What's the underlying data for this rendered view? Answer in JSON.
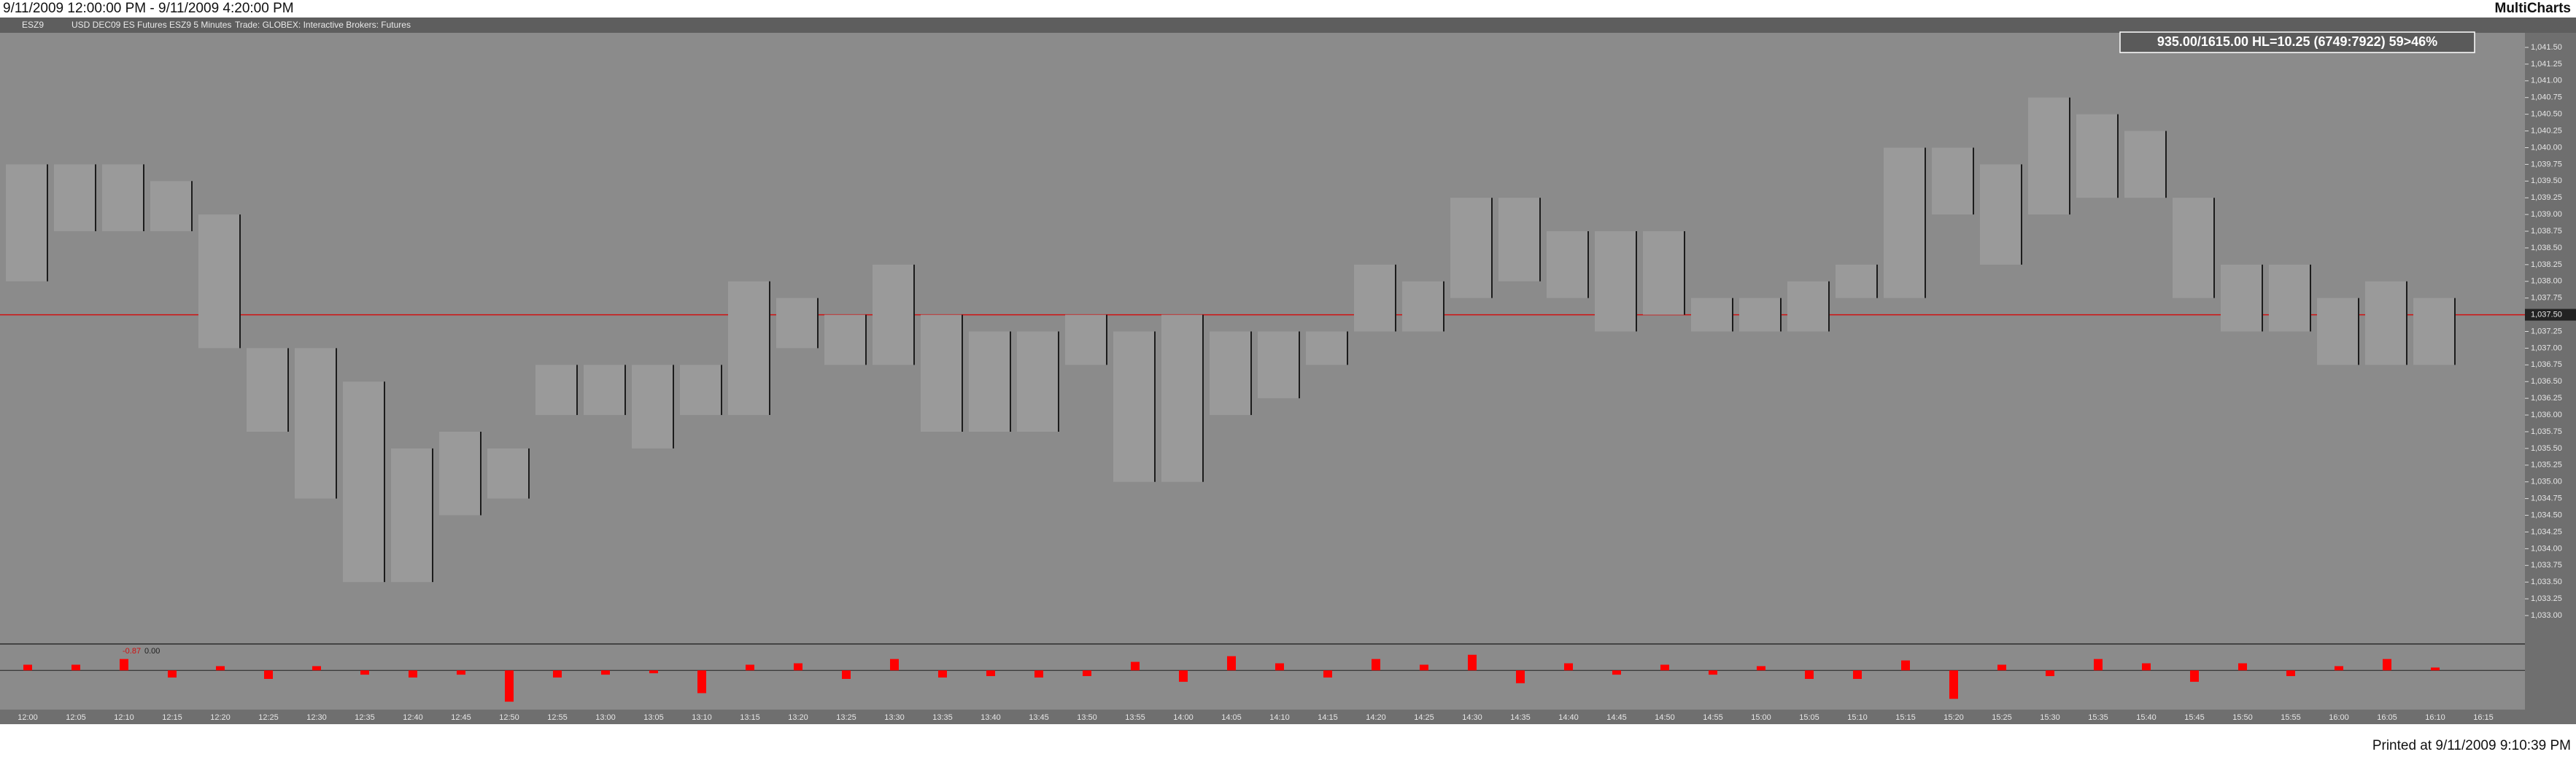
{
  "header": {
    "range_title": "9/11/2009 12:00:00 PM - 9/11/2009 4:20:00 PM",
    "app_name": "MultiCharts",
    "toolbar": [
      "ESZ9",
      "USD DEC09 ES Futures ESZ9 5 Minutes",
      "Trade: GLOBEX: Interactive Brokers: Futures"
    ],
    "printed": "Printed at 9/11/2009 9:10:39 PM"
  },
  "chart_data": {
    "type": "range",
    "info_box": "935.00/1615.00 HL=10.25 (6749:7922) 59>46%",
    "categories": [
      "12:00",
      "12:05",
      "12:10",
      "12:15",
      "12:20",
      "12:25",
      "12:30",
      "12:35",
      "12:40",
      "12:45",
      "12:50",
      "12:55",
      "13:00",
      "13:05",
      "13:10",
      "13:15",
      "13:20",
      "13:25",
      "13:30",
      "13:35",
      "13:40",
      "13:45",
      "13:50",
      "13:55",
      "14:00",
      "14:05",
      "14:10",
      "14:15",
      "14:20",
      "14:25",
      "14:30",
      "14:35",
      "14:40",
      "14:45",
      "14:50",
      "14:55",
      "15:00",
      "15:05",
      "15:10",
      "15:15",
      "15:20",
      "15:25",
      "15:30",
      "15:35",
      "15:40",
      "15:45",
      "15:50",
      "15:55",
      "16:00",
      "16:05",
      "16:10",
      "16:15"
    ],
    "highs": [
      1039.75,
      1039.75,
      1039.75,
      1039.5,
      1039,
      1037,
      1037,
      1036.5,
      1035.5,
      1035.75,
      1035.5,
      1036.75,
      1036.75,
      1036.75,
      1036.75,
      1038,
      1037.75,
      1037.5,
      1038.25,
      1037.5,
      1037.25,
      1037.25,
      1037.5,
      1037.25,
      1037.5,
      1037.25,
      1037.25,
      1037.25,
      1038.25,
      1038,
      1039.25,
      1039.25,
      1038.75,
      1038.75,
      1038.75,
      1037.75,
      1037.75,
      1038,
      1038.25,
      1040,
      1040,
      1039.75,
      1040.75,
      1040.5,
      1040.25,
      1039.25,
      1038.25,
      1038.25,
      1037.75,
      1038,
      1037.75,
      null
    ],
    "lows": [
      1038,
      1038.75,
      1038.75,
      1038.75,
      1037,
      1035.75,
      1034.75,
      1033.5,
      1033.5,
      1034.5,
      1034.75,
      1036,
      1036,
      1035.5,
      1036,
      1036,
      1037,
      1036.75,
      1036.75,
      1035.75,
      1035.75,
      1035.75,
      1036.75,
      1035,
      1035,
      1036,
      1036.25,
      1036.75,
      1037.25,
      1037.25,
      1037.75,
      1038,
      1037.75,
      1037.25,
      1037.5,
      1037.25,
      1037.25,
      1037.25,
      1037.75,
      1037.75,
      1039,
      1038.25,
      1039,
      1039.25,
      1039.25,
      1037.75,
      1037.25,
      1037.25,
      1036.75,
      1036.75,
      1036.75,
      null
    ],
    "color": "#1c1c1c",
    "last_price": {
      "value": 1037.5,
      "label": "1,037.50"
    },
    "last_price_color": "#d01010",
    "ylim": [
      1033,
      1041.5
    ],
    "yticks": [
      {
        "value": 1041.5,
        "label": "1,041.50"
      },
      {
        "value": 1041.25,
        "label": "1,041.25"
      },
      {
        "value": 1041,
        "label": "1,041.00"
      },
      {
        "value": 1040.75,
        "label": "1,040.75"
      },
      {
        "value": 1040.5,
        "label": "1,040.50"
      },
      {
        "value": 1040.25,
        "label": "1,040.25"
      },
      {
        "value": 1040,
        "label": "1,040.00"
      },
      {
        "value": 1039.75,
        "label": "1,039.75"
      },
      {
        "value": 1039.5,
        "label": "1,039.50"
      },
      {
        "value": 1039.25,
        "label": "1,039.25"
      },
      {
        "value": 1039,
        "label": "1,039.00"
      },
      {
        "value": 1038.75,
        "label": "1,038.75"
      },
      {
        "value": 1038.5,
        "label": "1,038.50"
      },
      {
        "value": 1038.25,
        "label": "1,038.25"
      },
      {
        "value": 1038,
        "label": "1,038.00"
      },
      {
        "value": 1037.75,
        "label": "1,037.75"
      },
      {
        "value": 1037.5,
        "label": "1,037.50"
      },
      {
        "value": 1037.25,
        "label": "1,037.25"
      },
      {
        "value": 1037,
        "label": "1,037.00"
      },
      {
        "value": 1036.75,
        "label": "1,036.75"
      },
      {
        "value": 1036.5,
        "label": "1,036.50"
      },
      {
        "value": 1036.25,
        "label": "1,036.25"
      },
      {
        "value": 1036,
        "label": "1,036.00"
      },
      {
        "value": 1035.75,
        "label": "1,035.75"
      },
      {
        "value": 1035.5,
        "label": "1,035.50"
      },
      {
        "value": 1035.25,
        "label": "1,035.25"
      },
      {
        "value": 1035,
        "label": "1,035.00"
      },
      {
        "value": 1034.75,
        "label": "1,034.75"
      },
      {
        "value": 1034.5,
        "label": "1,034.50"
      },
      {
        "value": 1034.25,
        "label": "1,034.25"
      },
      {
        "value": 1034,
        "label": "1,034.00"
      },
      {
        "value": 1033.75,
        "label": "1,033.75"
      },
      {
        "value": 1033.5,
        "label": "1,033.50"
      },
      {
        "value": 1033.25,
        "label": "1,033.25"
      },
      {
        "value": 1033,
        "label": "1,033.00"
      }
    ],
    "subchart": {
      "type": "bar",
      "labels": [
        "-0.87",
        "0.00"
      ],
      "color": "#ff0000",
      "ylim": [
        -2.5,
        1.5
      ],
      "values": [
        0.4,
        0.4,
        0.8,
        -0.5,
        0.3,
        -0.6,
        0.3,
        -0.3,
        -0.5,
        -0.3,
        -2.2,
        -0.5,
        -0.3,
        -0.2,
        -1.6,
        0.4,
        0.5,
        -0.6,
        0.8,
        -0.5,
        -0.4,
        -0.5,
        -0.4,
        0.6,
        -0.8,
        1.0,
        0.5,
        -0.5,
        0.8,
        0.4,
        1.1,
        -0.9,
        0.5,
        -0.3,
        0.4,
        -0.3,
        0.3,
        -0.6,
        -0.6,
        0.7,
        -2.0,
        0.4,
        -0.4,
        0.8,
        0.5,
        -0.8,
        0.5,
        -0.4,
        0.3,
        0.8,
        0.2,
        null
      ]
    }
  }
}
